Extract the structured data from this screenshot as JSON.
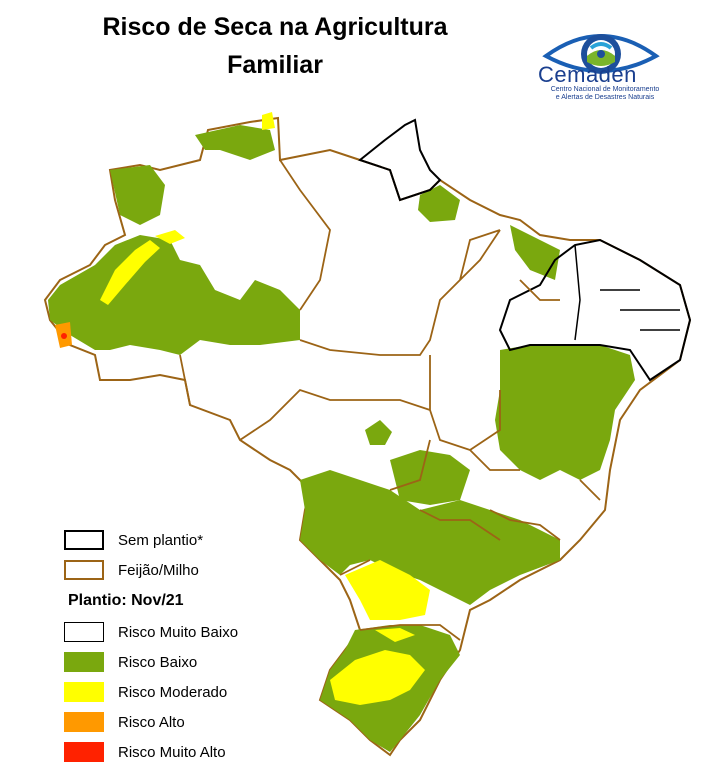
{
  "title_line1": "Risco de Seca na Agricultura",
  "title_line2": "Familiar",
  "logo": {
    "name": "Cemaden",
    "subtitle_line1": "Centro Nacional de Monitoramento",
    "subtitle_line2": "e Alertas de Desastres Naturais",
    "icon": "eye-logo-icon"
  },
  "legend": {
    "boundaries": [
      {
        "label": "Sem plantio*",
        "color": "#000000"
      },
      {
        "label": "Feijão/Milho",
        "color": "#9c6416"
      }
    ],
    "heading": "Plantio: Nov/21",
    "classes": [
      {
        "label": "Risco Muito Baixo",
        "color": "#ffffff"
      },
      {
        "label": "Risco Baixo",
        "color": "#7aa80e"
      },
      {
        "label": "Risco Moderado",
        "color": "#ffff00"
      },
      {
        "label": "Risco Alto",
        "color": "#ff9900"
      },
      {
        "label": "Risco Muito Alto",
        "color": "#ff2200"
      }
    ]
  }
}
